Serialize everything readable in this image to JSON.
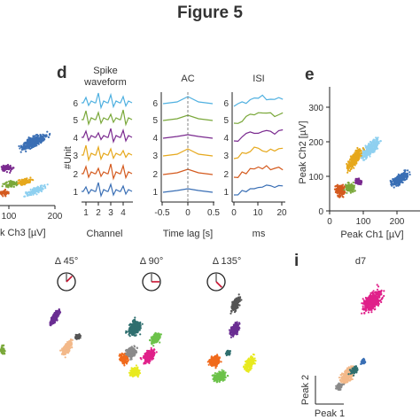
{
  "figure": {
    "title": "Figure 5"
  },
  "panels": {
    "left_partial": {
      "xticks": [
        "100",
        "200"
      ],
      "xlabel": "k Ch3 [µV]"
    },
    "d": {
      "letter": "d",
      "unit_label": "#Unit",
      "units": [
        "1",
        "2",
        "3",
        "4",
        "5",
        "6"
      ],
      "waveform": {
        "title_line1": "Spike",
        "title_line2": "waveform",
        "xticks": [
          "1",
          "2",
          "3",
          "4"
        ],
        "xlabel": "Channel"
      },
      "ac": {
        "title": "AC",
        "xticks": [
          "-0.5",
          "0",
          "0.5"
        ],
        "xlabel": "Time lag [s]"
      },
      "isi": {
        "title": "ISI",
        "xticks": [
          "0",
          "10",
          "20"
        ],
        "xlabel": "ms"
      }
    },
    "e": {
      "letter": "e",
      "ylabel": "Peak Ch2 [µV]",
      "xlabel": "Peak Ch1 [µV]",
      "xticks": [
        "0",
        "100",
        "200"
      ],
      "yticks": [
        "0",
        "100",
        "200",
        "300"
      ]
    },
    "rotations": [
      {
        "label": "Δ 45°",
        "angle": 45
      },
      {
        "label": "Δ 90°",
        "angle": 90
      },
      {
        "label": "Δ 135°",
        "angle": 135
      }
    ],
    "i": {
      "letter": "i",
      "title": "d7",
      "xlabel": "Peak 1",
      "ylabel": "Peak 2"
    }
  },
  "colors": {
    "unit1": "#3a6fb5",
    "unit2": "#d45a1e",
    "unit3": "#e6a81c",
    "unit4": "#7a2a8f",
    "unit5": "#7aa83a",
    "unit6": "#4fb0e0",
    "light_blue": "#8fd0f0",
    "magenta": "#e0208a",
    "teal": "#2f6f6f",
    "gray": "#8a8a8a",
    "dark_gray": "#555555",
    "peach": "#f3b98a",
    "yellow": "#e8ea20",
    "green": "#6cc24a",
    "orange": "#f06a1c",
    "purple": "#6a2d92",
    "pink": "#e04fa0",
    "marker_red": "#c8102e"
  }
}
